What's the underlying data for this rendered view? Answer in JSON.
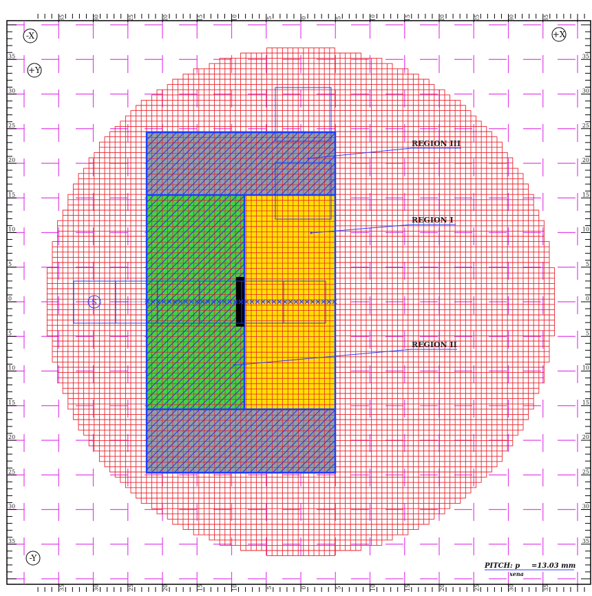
{
  "title": "",
  "regions": [
    {
      "id": "region-i",
      "label": "REGION I",
      "fill": "#ffe000"
    },
    {
      "id": "region-ii",
      "label": "REGION II",
      "fill": "#3fd63f"
    },
    {
      "id": "region-iii",
      "label": "REGION III",
      "fill": "#8ea0a8"
    }
  ],
  "axis_markers": {
    "neg_x": "-X",
    "pos_x": "+X",
    "pos_y": "+Y",
    "neg_y": "-Y",
    "source": "S"
  },
  "scale": {
    "ticks": [
      35,
      30,
      25,
      20,
      15,
      10,
      5,
      0,
      5,
      10,
      15,
      20,
      25,
      30,
      35
    ]
  },
  "pitch": {
    "label": "PITCH: p",
    "subscript": "xena",
    "value": "=13.03  mm"
  },
  "colors": {
    "core_grid": "#e8202a",
    "reference_grid": "#e040e8",
    "region_outline": "#1a3cff",
    "control_rod": "#000000",
    "frame": "#000000",
    "callout": "#2d3cff"
  }
}
